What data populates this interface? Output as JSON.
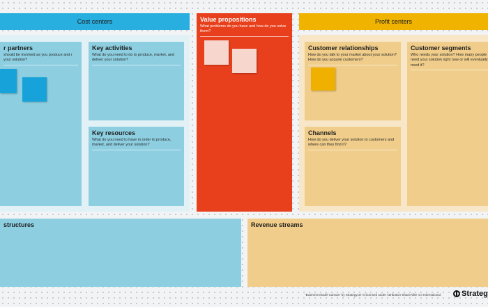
{
  "headers": {
    "cost": "Cost centers",
    "profit": "Profit centers"
  },
  "panels": {
    "partners": {
      "title": "r partners",
      "desc": "should be involved as you produce and r your solution?"
    },
    "activities": {
      "title": "Key activities",
      "desc": "What do you need to do to produce, market, and deliver your solution?"
    },
    "resources": {
      "title": "Key resources",
      "desc": "What do you need to have in order to produce, market, and deliver your solution?"
    },
    "value": {
      "title": "Value propositions",
      "desc": "What problems do you have and how do you solve them?"
    },
    "relationships": {
      "title": "Customer relationships",
      "desc": "How do you talk to your market about your solution? How do you acquire customers?"
    },
    "channels": {
      "title": "Channels",
      "desc": "How do you deliver your solution to customers and where can they find it?"
    },
    "segments": {
      "title": "Customer segments",
      "desc": "Who needs your solution? How many people need your solution right now or will eventually need it?"
    },
    "structures": {
      "title": "structures"
    },
    "revenue": {
      "title": "Revenue streams"
    }
  },
  "footer": {
    "license": "\"Business Model Canvas\" by Strategyzer is licensed under Attribution-ShareAlike 4.0 International.",
    "logo": "Strateg"
  }
}
